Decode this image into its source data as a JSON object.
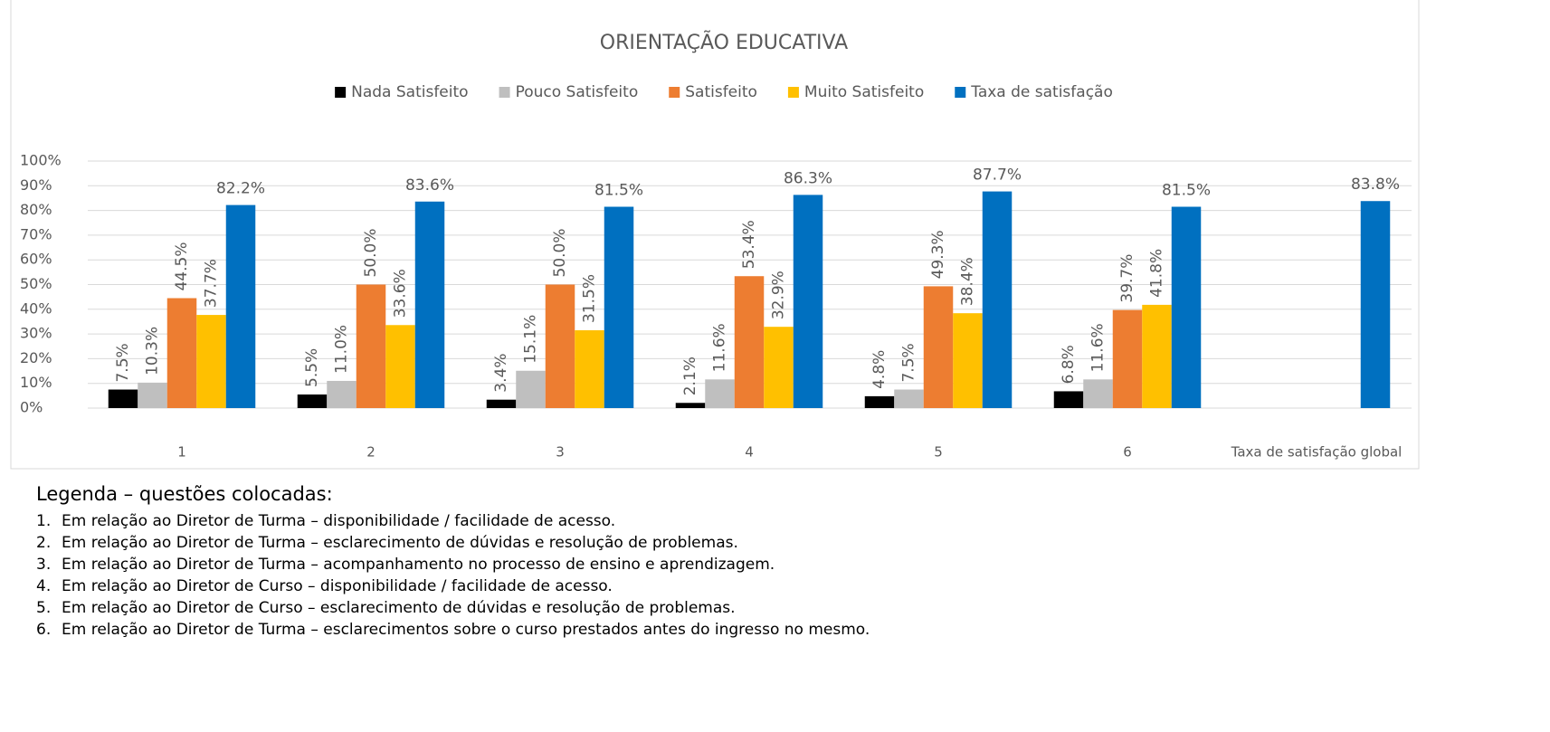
{
  "chart_data": {
    "type": "bar",
    "title": "ORIENTAÇÃO EDUCATIVA",
    "categories": [
      "1",
      "2",
      "3",
      "4",
      "5",
      "6",
      "Taxa de satisfação global"
    ],
    "series": [
      {
        "name": "Nada Satisfeito",
        "color": "#000000",
        "values": [
          7.5,
          5.5,
          3.4,
          2.1,
          4.8,
          6.8,
          null
        ],
        "value_labels": [
          "7.5%",
          "5.5%",
          "3.4%",
          "2.1%",
          "4.8%",
          "6.8%",
          null
        ]
      },
      {
        "name": "Pouco Satisfeito",
        "color": "#bfbfbf",
        "values": [
          10.3,
          11.0,
          15.1,
          11.6,
          7.5,
          11.6,
          null
        ],
        "value_labels": [
          "10.3%",
          "11.0%",
          "15.1%",
          "11.6%",
          "7.5%",
          "11.6%",
          null
        ]
      },
      {
        "name": "Satisfeito",
        "color": "#ed7d31",
        "values": [
          44.5,
          50.0,
          50.0,
          53.4,
          49.3,
          39.7,
          null
        ],
        "value_labels": [
          "44.5%",
          "50.0%",
          "50.0%",
          "53.4%",
          "49.3%",
          "39.7%",
          null
        ]
      },
      {
        "name": "Muito Satisfeito",
        "color": "#ffc000",
        "values": [
          37.7,
          33.6,
          31.5,
          32.9,
          38.4,
          41.8,
          null
        ],
        "value_labels": [
          "37.7%",
          "33.6%",
          "31.5%",
          "32.9%",
          "38.4%",
          "41.8%",
          null
        ]
      },
      {
        "name": "Taxa de satisfação",
        "color": "#0070c0",
        "values": [
          82.2,
          83.6,
          81.5,
          86.3,
          87.7,
          81.5,
          83.8
        ],
        "value_labels": [
          "82.2%",
          "83.6%",
          "81.5%",
          "86.3%",
          "87.7%",
          "81.5%",
          "83.8%"
        ]
      }
    ],
    "ylim": [
      0,
      100
    ],
    "yticks": [
      {
        "value": 0,
        "label": "0%"
      },
      {
        "value": 10,
        "label": "10%"
      },
      {
        "value": 20,
        "label": "20%"
      },
      {
        "value": 30,
        "label": "30%"
      },
      {
        "value": 40,
        "label": "40%"
      },
      {
        "value": 50,
        "label": "50%"
      },
      {
        "value": 60,
        "label": "60%"
      },
      {
        "value": 70,
        "label": "70%"
      },
      {
        "value": 80,
        "label": "80%"
      },
      {
        "value": 90,
        "label": "90%"
      },
      {
        "value": 100,
        "label": "100%"
      }
    ],
    "grid": true,
    "legend": "top"
  },
  "notes": {
    "title": "Legenda – questões colocadas:",
    "items": [
      {
        "number": "1.",
        "text": "Em relação ao Diretor de Turma – disponibilidade / facilidade de acesso."
      },
      {
        "number": "2.",
        "text": "Em relação ao Diretor de Turma – esclarecimento de dúvidas e resolução de problemas."
      },
      {
        "number": "3.",
        "text": "Em relação ao Diretor de Turma – acompanhamento no processo de ensino e aprendizagem."
      },
      {
        "number": "4.",
        "text": "Em relação ao Diretor de Curso – disponibilidade / facilidade de acesso."
      },
      {
        "number": "5.",
        "text": "Em relação ao Diretor de Curso – esclarecimento de dúvidas e resolução de problemas."
      },
      {
        "number": "6.",
        "text": "Em relação ao Diretor de Turma – esclarecimentos sobre o curso prestados antes do ingresso no mesmo."
      }
    ]
  }
}
